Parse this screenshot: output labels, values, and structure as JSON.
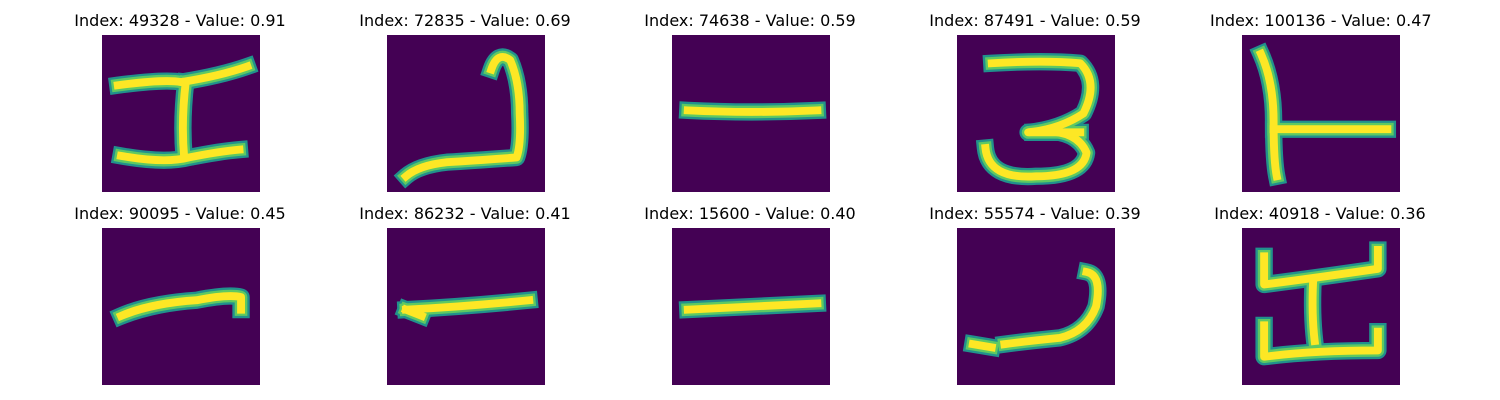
{
  "colors": {
    "background": "#440154",
    "stroke_edge": "#21918c",
    "stroke_mid": "#5ec962",
    "stroke_core": "#fde725"
  },
  "panels": [
    {
      "title": "Index: 49328 - Value: 0.91"
    },
    {
      "title": "Index: 72835 - Value: 0.69"
    },
    {
      "title": "Index: 74638 - Value: 0.59"
    },
    {
      "title": "Index: 87491 - Value: 0.59"
    },
    {
      "title": "Index: 100136 - Value: 0.47"
    },
    {
      "title": "Index: 90095 - Value: 0.45"
    },
    {
      "title": "Index: 86232 - Value: 0.41"
    },
    {
      "title": "Index: 15600 - Value: 0.40"
    },
    {
      "title": "Index: 55574 - Value: 0.39"
    },
    {
      "title": "Index: 40918 - Value: 0.36"
    }
  ]
}
